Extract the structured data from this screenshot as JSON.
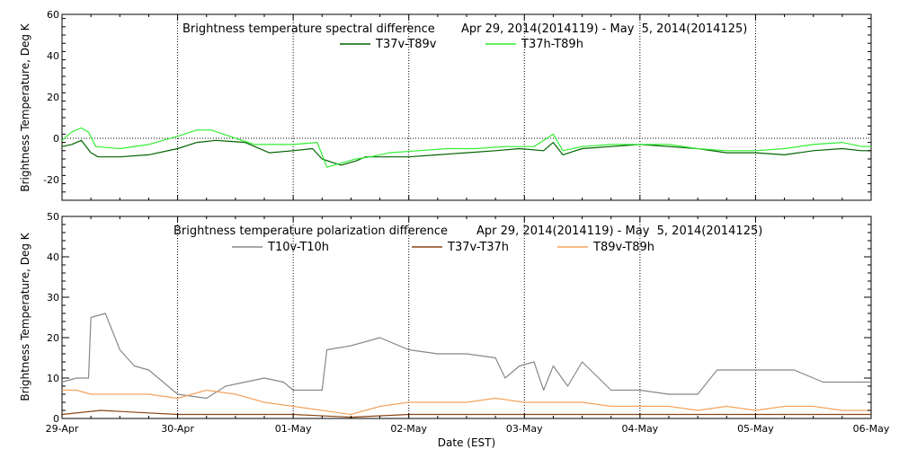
{
  "xaxis": {
    "label": "Date (EST)",
    "tick_labels": [
      "29-Apr",
      "30-Apr",
      "01-May",
      "02-May",
      "03-May",
      "04-May",
      "05-May",
      "06-May"
    ]
  },
  "chart_data": [
    {
      "type": "line",
      "title": "Brightness temperature spectral difference",
      "date_range": "Apr 29, 2014(2014119) - May  5, 2014(2014125)",
      "ylabel": "Brightness Temperature, Deg K",
      "ylim": [
        -30,
        60
      ],
      "yticks": [
        -20,
        0,
        20,
        40,
        60
      ],
      "xlim": [
        "2014-04-29",
        "2014-05-06"
      ],
      "grid": true,
      "legend": "top-center",
      "series": [
        {
          "name": "T37v-T89v",
          "color": "#006400",
          "points": [
            [
              "2014-04-29T00:00",
              -4
            ],
            [
              "2014-04-29T02:00",
              -3
            ],
            [
              "2014-04-29T04:00",
              -1
            ],
            [
              "2014-04-29T06:00",
              -7
            ],
            [
              "2014-04-29T07:30",
              -9
            ],
            [
              "2014-04-29T12:00",
              -9
            ],
            [
              "2014-04-29T18:00",
              -8
            ],
            [
              "2014-04-30T00:00",
              -5
            ],
            [
              "2014-04-30T04:00",
              -2
            ],
            [
              "2014-04-30T08:00",
              -1
            ],
            [
              "2014-04-30T14:00",
              -2
            ],
            [
              "2014-04-30T19:00",
              -7
            ],
            [
              "2014-05-01T00:00",
              -6
            ],
            [
              "2014-05-01T04:00",
              -5
            ],
            [
              "2014-05-01T06:00",
              -10
            ],
            [
              "2014-05-01T08:30",
              -12
            ],
            [
              "2014-05-01T10:00",
              -13
            ],
            [
              "2014-05-01T13:00",
              -11
            ],
            [
              "2014-05-01T15:00",
              -9
            ],
            [
              "2014-05-01T18:00",
              -9
            ],
            [
              "2014-05-02T00:00",
              -9
            ],
            [
              "2014-05-02T06:00",
              -8
            ],
            [
              "2014-05-02T12:00",
              -7
            ],
            [
              "2014-05-02T18:00",
              -6
            ],
            [
              "2014-05-02T23:00",
              -5
            ],
            [
              "2014-05-03T04:00",
              -6
            ],
            [
              "2014-05-03T06:00",
              -2
            ],
            [
              "2014-05-03T08:00",
              -8
            ],
            [
              "2014-05-03T12:00",
              -5
            ],
            [
              "2014-05-03T18:00",
              -4
            ],
            [
              "2014-05-04T00:00",
              -3
            ],
            [
              "2014-05-04T06:00",
              -4
            ],
            [
              "2014-05-04T12:00",
              -5
            ],
            [
              "2014-05-04T18:00",
              -7
            ],
            [
              "2014-05-05T00:00",
              -7
            ],
            [
              "2014-05-05T06:00",
              -8
            ],
            [
              "2014-05-05T12:00",
              -6
            ],
            [
              "2014-05-05T18:00",
              -5
            ],
            [
              "2014-05-05T22:00",
              -6
            ],
            [
              "2014-05-06T00:00",
              -6
            ]
          ]
        },
        {
          "name": "T37h-T89h",
          "color": "#33ee33",
          "points": [
            [
              "2014-04-29T00:00",
              -1
            ],
            [
              "2014-04-29T02:00",
              3
            ],
            [
              "2014-04-29T04:00",
              5
            ],
            [
              "2014-04-29T05:30",
              3
            ],
            [
              "2014-04-29T07:00",
              -4
            ],
            [
              "2014-04-29T12:00",
              -5
            ],
            [
              "2014-04-29T18:00",
              -3
            ],
            [
              "2014-04-30T00:00",
              1
            ],
            [
              "2014-04-30T04:00",
              4
            ],
            [
              "2014-04-30T07:00",
              4
            ],
            [
              "2014-04-30T12:00",
              0
            ],
            [
              "2014-04-30T16:00",
              -3
            ],
            [
              "2014-05-01T00:00",
              -3
            ],
            [
              "2014-05-01T05:00",
              -2
            ],
            [
              "2014-05-01T07:00",
              -14
            ],
            [
              "2014-05-01T10:00",
              -12
            ],
            [
              "2014-05-01T13:00",
              -10
            ],
            [
              "2014-05-01T16:00",
              -9
            ],
            [
              "2014-05-01T20:00",
              -7
            ],
            [
              "2014-05-02T02:00",
              -6
            ],
            [
              "2014-05-02T08:00",
              -5
            ],
            [
              "2014-05-02T14:00",
              -5
            ],
            [
              "2014-05-02T20:00",
              -4
            ],
            [
              "2014-05-03T02:00",
              -4
            ],
            [
              "2014-05-03T06:00",
              2
            ],
            [
              "2014-05-03T08:00",
              -6
            ],
            [
              "2014-05-03T12:00",
              -4
            ],
            [
              "2014-05-03T18:00",
              -3
            ],
            [
              "2014-05-04T00:00",
              -3
            ],
            [
              "2014-05-04T06:00",
              -3
            ],
            [
              "2014-05-04T12:00",
              -5
            ],
            [
              "2014-05-04T18:00",
              -6
            ],
            [
              "2014-05-05T00:00",
              -6
            ],
            [
              "2014-05-05T06:00",
              -5
            ],
            [
              "2014-05-05T12:00",
              -3
            ],
            [
              "2014-05-05T18:00",
              -2
            ],
            [
              "2014-05-05T22:00",
              -4
            ],
            [
              "2014-05-06T00:00",
              -4
            ]
          ]
        }
      ]
    },
    {
      "type": "line",
      "title": "Brightness temperature polarization difference",
      "date_range": "Apr 29, 2014(2014119) - May  5, 2014(2014125)",
      "ylabel": "Brightness Temperature, Deg K",
      "ylim": [
        0,
        50
      ],
      "yticks": [
        0,
        10,
        20,
        30,
        40,
        50
      ],
      "xlim": [
        "2014-04-29",
        "2014-05-06"
      ],
      "grid": true,
      "legend": "top-center",
      "series": [
        {
          "name": "T10v-T10h",
          "color": "#888888",
          "points": [
            [
              "2014-04-29T00:00",
              9
            ],
            [
              "2014-04-29T03:00",
              10
            ],
            [
              "2014-04-29T05:30",
              10
            ],
            [
              "2014-04-29T06:00",
              25
            ],
            [
              "2014-04-29T09:00",
              26
            ],
            [
              "2014-04-29T12:00",
              17
            ],
            [
              "2014-04-29T15:00",
              13
            ],
            [
              "2014-04-29T18:00",
              12
            ],
            [
              "2014-04-29T21:00",
              9
            ],
            [
              "2014-04-30T00:00",
              6
            ],
            [
              "2014-04-30T06:00",
              5
            ],
            [
              "2014-04-30T10:00",
              8
            ],
            [
              "2014-04-30T14:00",
              9
            ],
            [
              "2014-04-30T18:00",
              10
            ],
            [
              "2014-04-30T22:00",
              9
            ],
            [
              "2014-05-01T00:00",
              7
            ],
            [
              "2014-05-01T06:00",
              7
            ],
            [
              "2014-05-01T07:00",
              17
            ],
            [
              "2014-05-01T12:00",
              18
            ],
            [
              "2014-05-01T18:00",
              20
            ],
            [
              "2014-05-02T00:00",
              17
            ],
            [
              "2014-05-02T06:00",
              16
            ],
            [
              "2014-05-02T12:00",
              16
            ],
            [
              "2014-05-02T18:00",
              15
            ],
            [
              "2014-05-02T20:00",
              10
            ],
            [
              "2014-05-02T23:00",
              13
            ],
            [
              "2014-05-03T02:00",
              14
            ],
            [
              "2014-05-03T04:00",
              7
            ],
            [
              "2014-05-03T06:00",
              13
            ],
            [
              "2014-05-03T09:00",
              8
            ],
            [
              "2014-05-03T12:00",
              14
            ],
            [
              "2014-05-03T18:00",
              7
            ],
            [
              "2014-05-04T00:00",
              7
            ],
            [
              "2014-05-04T06:00",
              6
            ],
            [
              "2014-05-04T12:00",
              6
            ],
            [
              "2014-05-04T16:00",
              12
            ],
            [
              "2014-05-04T20:00",
              12
            ],
            [
              "2014-05-05T00:00",
              12
            ],
            [
              "2014-05-05T08:00",
              12
            ],
            [
              "2014-05-05T14:00",
              9
            ],
            [
              "2014-05-05T20:00",
              9
            ],
            [
              "2014-05-06T00:00",
              9
            ]
          ]
        },
        {
          "name": "T37v-T37h",
          "color": "#8b4513",
          "points": [
            [
              "2014-04-29T00:00",
              1
            ],
            [
              "2014-04-29T08:00",
              2
            ],
            [
              "2014-04-29T16:00",
              1.5
            ],
            [
              "2014-04-30T00:00",
              1
            ],
            [
              "2014-04-30T12:00",
              1
            ],
            [
              "2014-05-01T00:00",
              1
            ],
            [
              "2014-05-01T12:00",
              0.3
            ],
            [
              "2014-05-02T00:00",
              1
            ],
            [
              "2014-05-02T12:00",
              1
            ],
            [
              "2014-05-03T00:00",
              1
            ],
            [
              "2014-05-03T12:00",
              1
            ],
            [
              "2014-05-04T00:00",
              1
            ],
            [
              "2014-05-04T12:00",
              1
            ],
            [
              "2014-05-05T00:00",
              1
            ],
            [
              "2014-05-05T12:00",
              1
            ],
            [
              "2014-05-06T00:00",
              1
            ]
          ]
        },
        {
          "name": "T89v-T89h",
          "color": "#f4a460",
          "points": [
            [
              "2014-04-29T00:00",
              7
            ],
            [
              "2014-04-29T03:00",
              7
            ],
            [
              "2014-04-29T06:00",
              6
            ],
            [
              "2014-04-29T12:00",
              6
            ],
            [
              "2014-04-29T18:00",
              6
            ],
            [
              "2014-04-30T00:00",
              5
            ],
            [
              "2014-04-30T06:00",
              7
            ],
            [
              "2014-04-30T12:00",
              6
            ],
            [
              "2014-04-30T18:00",
              4
            ],
            [
              "2014-05-01T00:00",
              3
            ],
            [
              "2014-05-01T06:00",
              2
            ],
            [
              "2014-05-01T12:00",
              1
            ],
            [
              "2014-05-01T18:00",
              3
            ],
            [
              "2014-05-02T00:00",
              4
            ],
            [
              "2014-05-02T06:00",
              4
            ],
            [
              "2014-05-02T12:00",
              4
            ],
            [
              "2014-05-02T18:00",
              5
            ],
            [
              "2014-05-03T00:00",
              4
            ],
            [
              "2014-05-03T06:00",
              4
            ],
            [
              "2014-05-03T12:00",
              4
            ],
            [
              "2014-05-03T18:00",
              3
            ],
            [
              "2014-05-04T00:00",
              3
            ],
            [
              "2014-05-04T06:00",
              3
            ],
            [
              "2014-05-04T12:00",
              2
            ],
            [
              "2014-05-04T18:00",
              3
            ],
            [
              "2014-05-05T00:00",
              2
            ],
            [
              "2014-05-05T06:00",
              3
            ],
            [
              "2014-05-05T12:00",
              3
            ],
            [
              "2014-05-05T18:00",
              2
            ],
            [
              "2014-05-06T00:00",
              2
            ]
          ]
        }
      ]
    }
  ]
}
